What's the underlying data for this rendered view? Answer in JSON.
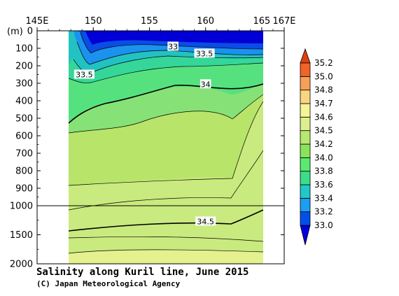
{
  "chart_data": {
    "type": "contour",
    "title": "Salinity along Kuril line, June 2015",
    "credit": "(C) Japan Meteorological Agency",
    "ylabel": "(m)",
    "x_ticks": [
      "145E",
      "150",
      "155",
      "160",
      "165",
      "167E"
    ],
    "x_tick_values": [
      145,
      150,
      155,
      160,
      165,
      167
    ],
    "xlim": [
      145,
      167
    ],
    "y_ticks_upper": [
      "0",
      "100",
      "200",
      "300",
      "400",
      "500",
      "600",
      "700",
      "800",
      "900",
      "1000"
    ],
    "y_tick_values_upper": [
      0,
      100,
      200,
      300,
      400,
      500,
      600,
      700,
      800,
      900,
      1000
    ],
    "y_ticks_lower": [
      "1500",
      "2000"
    ],
    "y_tick_values_lower": [
      1500,
      2000
    ],
    "ylim": [
      0,
      2000
    ],
    "depth_break": 1000,
    "data_extent": {
      "lon": [
        148,
        165
      ],
      "depth": [
        0,
        2000
      ]
    },
    "contour_labels": [
      {
        "text": "33",
        "lon": 157.1,
        "depth": 90
      },
      {
        "text": "33.5",
        "lon": 159.9,
        "depth": 130
      },
      {
        "text": "33.5",
        "lon": 149.2,
        "depth": 250
      },
      {
        "text": "34",
        "lon": 160.0,
        "depth": 305
      },
      {
        "text": "34.5",
        "lon": 160.0,
        "depth": 1270
      }
    ],
    "colorbar": {
      "levels": [
        "33.0",
        "33.2",
        "33.4",
        "33.6",
        "33.8",
        "34.0",
        "34.2",
        "34.5",
        "34.6",
        "34.7",
        "34.8",
        "35.0",
        "35.2"
      ],
      "colors": [
        "#0000dd",
        "#0050e8",
        "#1c9ef2",
        "#22c8c8",
        "#3ddc8c",
        "#5aea72",
        "#8ae45a",
        "#b8e870",
        "#dcef8c",
        "#f5f598",
        "#fbd57e",
        "#f8a058",
        "#f06428",
        "#e04010"
      ]
    }
  }
}
